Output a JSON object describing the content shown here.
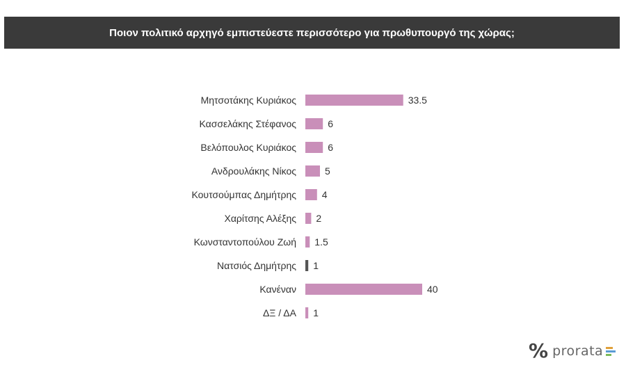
{
  "title": "Ποιον πολιτικό αρχηγό εμπιστεύεστε περισσότερο για πρωθυπουργό της χώρας;",
  "logo": {
    "mark": "%",
    "text": "prorata"
  },
  "colors": {
    "bar": "#c98fb9",
    "highlight": "#555555",
    "title_bg": "#3a3a3a"
  },
  "chart_data": {
    "type": "bar",
    "orientation": "horizontal",
    "title": "Ποιον πολιτικό αρχηγό εμπιστεύεστε περισσότερο για πρωθυπουργό της χώρας;",
    "xlabel": "",
    "ylabel": "",
    "xlim": [
      0,
      40
    ],
    "grid": false,
    "categories": [
      "Μητσοτάκης Κυριάκος",
      "Κασσελάκης Στέφανος",
      "Βελόπουλος Κυριάκος",
      "Ανδρουλάκης Νίκος",
      "Κουτσούμπας Δημήτρης",
      "Χαρίτσης Αλέξης",
      "Κωνσταντοπούλου Ζωή",
      "Νατσιός Δημήτρης",
      "Κανέναν",
      "ΔΞ / ΔΑ"
    ],
    "values": [
      33.5,
      6,
      6,
      5,
      4,
      2,
      1.5,
      1,
      40,
      1
    ],
    "value_labels": [
      "33.5",
      "6",
      "6",
      "5",
      "4",
      "2",
      "1.5",
      "1",
      "40",
      "1"
    ],
    "highlighted_index": 7
  }
}
